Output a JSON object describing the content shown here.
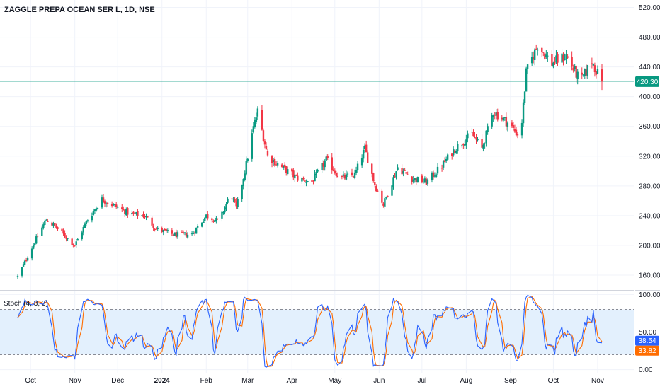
{
  "chart_data": {
    "type": "candlestick",
    "title": "ZAGGLE PREPA OCEAN SER L, 1D, NSE",
    "last_price": {
      "value": 420.3,
      "label": "420.30",
      "color": "#089981"
    },
    "colors": {
      "up": "#089981",
      "down": "#f23645",
      "stoch_k": "#2962ff",
      "stoch_d": "#ff6d00",
      "band_fill": "#e3f0fd",
      "grid": "#f0f3fa"
    },
    "price_axis": {
      "min": 140,
      "max": 530,
      "ticks": [
        "520.00",
        "480.00",
        "440.00",
        "400.00",
        "360.00",
        "320.00",
        "280.00",
        "240.00",
        "200.00",
        "160.00"
      ]
    },
    "x_axis": {
      "labels": [
        {
          "text": "Oct",
          "date": "2023-10-01"
        },
        {
          "text": "Nov",
          "date": "2023-11-01"
        },
        {
          "text": "Dec",
          "date": "2023-12-01"
        },
        {
          "text": "2024",
          "date": "2024-01-01",
          "bold": true
        },
        {
          "text": "Feb",
          "date": "2024-02-01"
        },
        {
          "text": "Mar",
          "date": "2024-03-01"
        },
        {
          "text": "Apr",
          "date": "2024-04-01"
        },
        {
          "text": "May",
          "date": "2024-05-01"
        },
        {
          "text": "Jun",
          "date": "2024-06-01"
        },
        {
          "text": "Jul",
          "date": "2024-07-01"
        },
        {
          "text": "Aug",
          "date": "2024-08-01"
        },
        {
          "text": "Sep",
          "date": "2024-09-01"
        },
        {
          "text": "Oct",
          "date": "2024-10-01"
        },
        {
          "text": "Nov",
          "date": "2024-11-01"
        }
      ]
    },
    "price_path": [
      [
        "2023-09-22",
        158
      ],
      [
        "2023-10-04",
        205
      ],
      [
        "2023-10-12",
        235
      ],
      [
        "2023-10-20",
        222
      ],
      [
        "2023-11-01",
        200
      ],
      [
        "2023-11-10",
        235
      ],
      [
        "2023-11-20",
        262
      ],
      [
        "2023-11-30",
        252
      ],
      [
        "2023-12-10",
        242
      ],
      [
        "2023-12-20",
        240
      ],
      [
        "2023-12-28",
        222
      ],
      [
        "2024-01-10",
        214
      ],
      [
        "2024-01-22",
        215
      ],
      [
        "2024-02-01",
        240
      ],
      [
        "2024-02-10",
        232
      ],
      [
        "2024-02-18",
        270
      ],
      [
        "2024-02-22",
        250
      ],
      [
        "2024-02-28",
        300
      ],
      [
        "2024-03-05",
        358
      ],
      [
        "2024-03-08",
        380
      ],
      [
        "2024-03-15",
        320
      ],
      [
        "2024-03-25",
        305
      ],
      [
        "2024-04-05",
        290
      ],
      [
        "2024-04-15",
        285
      ],
      [
        "2024-04-25",
        315
      ],
      [
        "2024-05-05",
        290
      ],
      [
        "2024-05-15",
        295
      ],
      [
        "2024-05-22",
        330
      ],
      [
        "2024-05-29",
        282
      ],
      [
        "2024-06-04",
        255
      ],
      [
        "2024-06-14",
        305
      ],
      [
        "2024-06-24",
        290
      ],
      [
        "2024-07-04",
        285
      ],
      [
        "2024-07-14",
        305
      ],
      [
        "2024-07-24",
        330
      ],
      [
        "2024-08-05",
        350
      ],
      [
        "2024-08-12",
        330
      ],
      [
        "2024-08-20",
        380
      ],
      [
        "2024-08-30",
        365
      ],
      [
        "2024-09-08",
        345
      ],
      [
        "2024-09-12",
        432
      ],
      [
        "2024-09-20",
        470
      ],
      [
        "2024-09-30",
        445
      ],
      [
        "2024-10-10",
        455
      ],
      [
        "2024-10-20",
        420
      ],
      [
        "2024-10-28",
        448
      ],
      [
        "2024-11-04",
        418
      ]
    ],
    "stochastic": {
      "label": "Stoch (4, 3, 3)",
      "params": [
        4,
        3,
        3
      ],
      "k_value": 38.54,
      "k_label": "38.54",
      "d_value": 33.82,
      "d_label": "33.82",
      "axis": {
        "min": -5,
        "max": 105,
        "ticks": [
          "100.00",
          "50.00",
          "0.00"
        ]
      },
      "upper_band": 80,
      "lower_band": 20
    }
  }
}
